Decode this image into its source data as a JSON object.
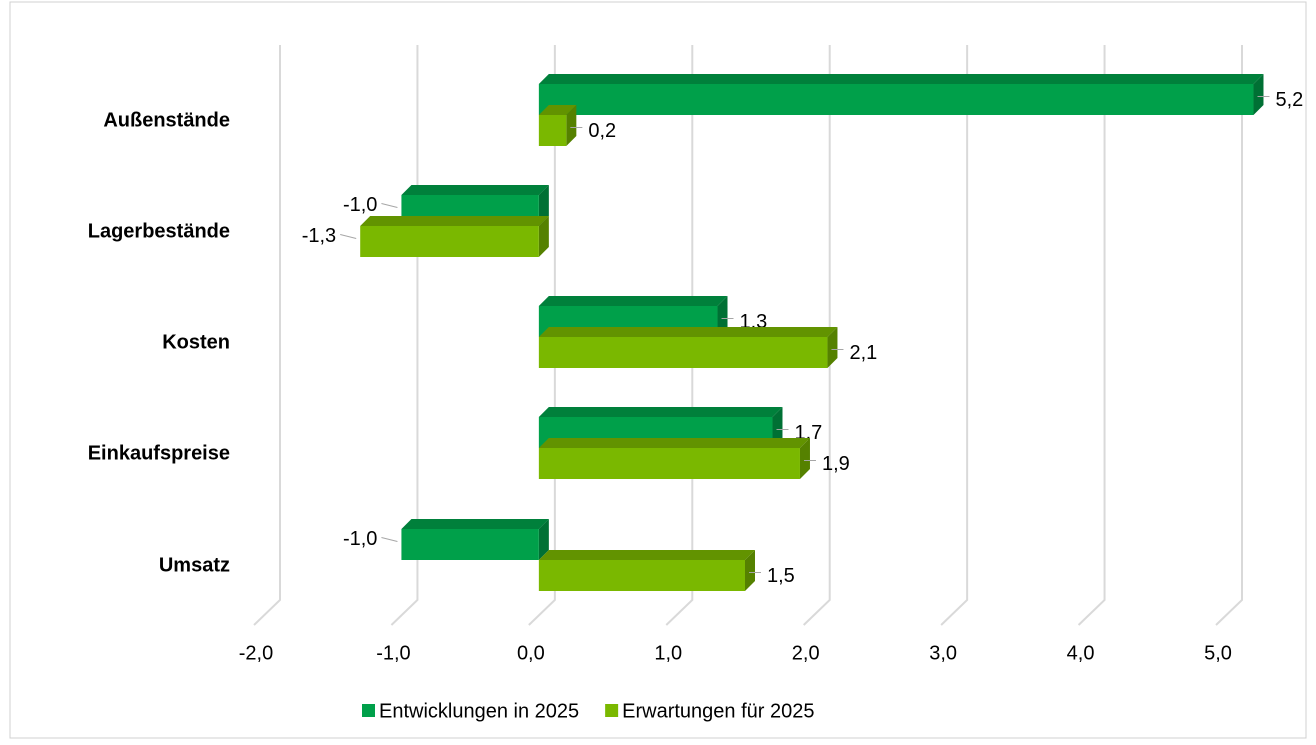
{
  "chart_data": {
    "type": "bar3d_horizontal",
    "categories": [
      "Außenstände",
      "Lagerbestände",
      "Kosten",
      "Einkaufspreise",
      "Umsatz"
    ],
    "series": [
      {
        "name": "Entwicklungen in 2025",
        "color": "#00a04a",
        "values": [
          5.2,
          -1.0,
          1.3,
          1.7,
          -1.0
        ],
        "value_labels": [
          "5,2",
          "-1,0",
          "1,3",
          "1,7",
          "-1,0"
        ]
      },
      {
        "name": "Erwartungen für 2025",
        "color": "#7ab800",
        "values": [
          0.2,
          -1.3,
          2.1,
          1.9,
          1.5
        ],
        "value_labels": [
          "0,2",
          "-1,3",
          "2,1",
          "1,9",
          "1,5"
        ]
      }
    ],
    "xlim": [
      -2,
      5
    ],
    "xticks": [
      {
        "value": -2,
        "label": "-2,0"
      },
      {
        "value": -1,
        "label": "-1,0"
      },
      {
        "value": 0,
        "label": "0,0"
      },
      {
        "value": 1,
        "label": "1,0"
      },
      {
        "value": 2,
        "label": "2,0"
      },
      {
        "value": 3,
        "label": "3,0"
      },
      {
        "value": 4,
        "label": "4,0"
      },
      {
        "value": 5,
        "label": "5,0"
      }
    ],
    "grid": true,
    "legend": "bottom"
  }
}
